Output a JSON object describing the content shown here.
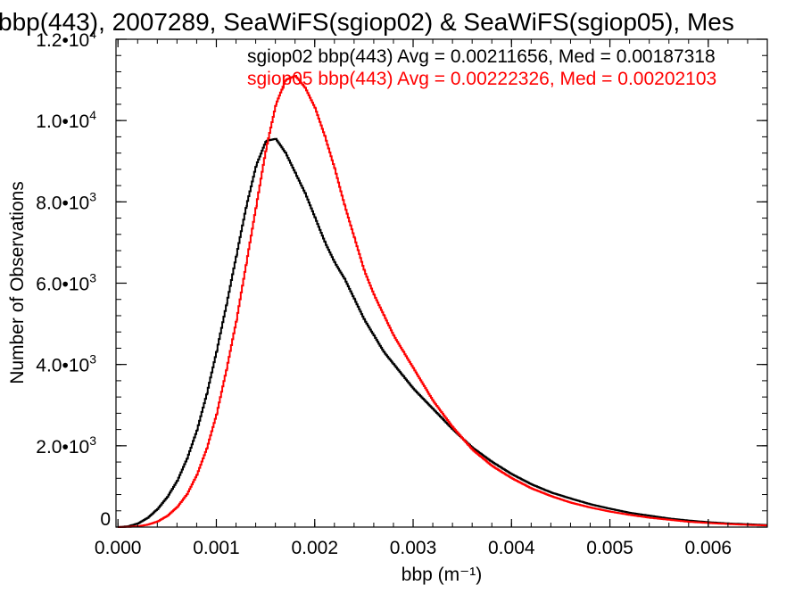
{
  "chart_data": {
    "type": "line",
    "title": "bbp(443), 2007289, SeaWiFS(sgiop02) & SeaWiFS(sgiop05), Mes",
    "xlabel": "bbp (m⁻¹)",
    "ylabel": "Number of Observations",
    "xlim": [
      -2e-05,
      0.0066
    ],
    "ylim": [
      0,
      12000
    ],
    "x_ticks": [
      {
        "value": 0.0,
        "label": "0.000"
      },
      {
        "value": 0.001,
        "label": "0.001"
      },
      {
        "value": 0.002,
        "label": "0.002"
      },
      {
        "value": 0.003,
        "label": "0.003"
      },
      {
        "value": 0.004,
        "label": "0.004"
      },
      {
        "value": 0.005,
        "label": "0.005"
      },
      {
        "value": 0.006,
        "label": "0.006"
      }
    ],
    "y_ticks": [
      {
        "value": 0,
        "mantissa": "0",
        "exp": ""
      },
      {
        "value": 2000,
        "mantissa": "2.0•10",
        "exp": "3"
      },
      {
        "value": 4000,
        "mantissa": "4.0•10",
        "exp": "3"
      },
      {
        "value": 6000,
        "mantissa": "6.0•10",
        "exp": "3"
      },
      {
        "value": 8000,
        "mantissa": "8.0•10",
        "exp": "3"
      },
      {
        "value": 10000,
        "mantissa": "1.0•10",
        "exp": "4"
      },
      {
        "value": 12000,
        "mantissa": "1.2•10",
        "exp": "4"
      }
    ],
    "grid": false,
    "series": [
      {
        "name": "sgiop02 bbp(443) Avg = 0.00211656, Med = 0.00187318",
        "color": "#000000",
        "x": [
          0.0,
          0.0001,
          0.0002,
          0.0003,
          0.0004,
          0.0005,
          0.0006,
          0.0007,
          0.0008,
          0.0009,
          0.001,
          0.0011,
          0.0012,
          0.0013,
          0.0014,
          0.0015,
          0.0016,
          0.0017,
          0.0018,
          0.0019,
          0.002,
          0.0021,
          0.0022,
          0.0023,
          0.0024,
          0.0025,
          0.0026,
          0.0027,
          0.0028,
          0.0029,
          0.003,
          0.0032,
          0.0034,
          0.0036,
          0.0038,
          0.004,
          0.0042,
          0.0044,
          0.0046,
          0.0048,
          0.005,
          0.0052,
          0.0054,
          0.0056,
          0.0058,
          0.006,
          0.0062,
          0.0064,
          0.0066
        ],
        "y": [
          0,
          20,
          90,
          230,
          450,
          750,
          1150,
          1700,
          2400,
          3300,
          4350,
          5500,
          6700,
          7900,
          8900,
          9500,
          9550,
          9200,
          8700,
          8200,
          7600,
          7000,
          6500,
          6100,
          5600,
          5100,
          4700,
          4300,
          4000,
          3700,
          3400,
          2900,
          2400,
          1950,
          1600,
          1300,
          1050,
          850,
          700,
          560,
          450,
          350,
          280,
          210,
          160,
          120,
          90,
          70,
          50
        ]
      },
      {
        "name": "sgiop05 bbp(443) Avg = 0.00222326, Med = 0.00202103",
        "color": "#ff0000",
        "x": [
          0.0,
          0.0001,
          0.0002,
          0.0003,
          0.0004,
          0.0005,
          0.0006,
          0.0007,
          0.0008,
          0.0009,
          0.001,
          0.0011,
          0.0012,
          0.0013,
          0.0014,
          0.0015,
          0.0016,
          0.0017,
          0.0018,
          0.0019,
          0.002,
          0.0021,
          0.0022,
          0.0023,
          0.0024,
          0.0025,
          0.0026,
          0.0027,
          0.0028,
          0.0029,
          0.003,
          0.0032,
          0.0034,
          0.0036,
          0.0038,
          0.004,
          0.0042,
          0.0044,
          0.0046,
          0.0048,
          0.005,
          0.0052,
          0.0054,
          0.0056,
          0.0058,
          0.006,
          0.0062,
          0.0064,
          0.0066
        ],
        "y": [
          0,
          5,
          20,
          60,
          140,
          280,
          500,
          820,
          1300,
          1950,
          2800,
          3900,
          5100,
          6500,
          7900,
          9300,
          10400,
          11000,
          11100,
          10800,
          10300,
          9600,
          8800,
          7900,
          7100,
          6300,
          5700,
          5200,
          4700,
          4300,
          3900,
          3100,
          2450,
          1900,
          1500,
          1200,
          950,
          760,
          600,
          480,
          380,
          300,
          230,
          180,
          130,
          100,
          75,
          55,
          40
        ]
      }
    ]
  }
}
